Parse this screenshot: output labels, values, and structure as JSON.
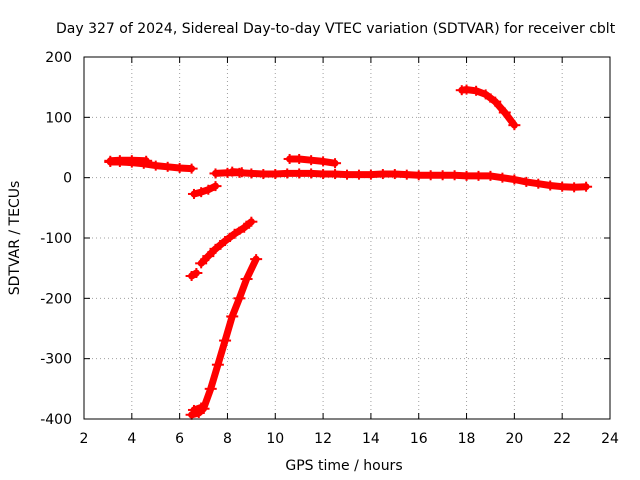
{
  "chart_data": {
    "type": "scatter",
    "title": "Day 327 of 2024, Sidereal Day-to-day VTEC variation (SDTVAR) for receiver cblt",
    "xlabel": "GPS time / hours",
    "ylabel": "SDTVAR / TECUs",
    "xlim": [
      2,
      24
    ],
    "ylim": [
      -400,
      200
    ],
    "xticks": [
      "2",
      "4",
      "6",
      "8",
      "10",
      "12",
      "14",
      "16",
      "18",
      "20",
      "22",
      "24"
    ],
    "yticks": [
      "200",
      "100",
      "0",
      "-100",
      "-200",
      "-300",
      "-400"
    ],
    "grid": true,
    "legend": "none",
    "color": "#ff0000",
    "series": [
      {
        "points": [
          [
            3.1,
            26
          ],
          [
            3.5,
            26
          ],
          [
            4.0,
            25
          ],
          [
            4.5,
            23
          ],
          [
            5.0,
            20
          ],
          [
            5.5,
            18
          ],
          [
            6.0,
            16
          ],
          [
            6.5,
            15
          ]
        ]
      },
      {
        "points": [
          [
            3.1,
            28
          ],
          [
            3.5,
            29
          ],
          [
            4.0,
            29
          ],
          [
            4.6,
            28
          ]
        ]
      },
      {
        "points": [
          [
            6.6,
            -27
          ],
          [
            6.9,
            -24
          ],
          [
            7.2,
            -20
          ],
          [
            7.5,
            -14
          ]
        ]
      },
      {
        "points": [
          [
            7.5,
            7
          ],
          [
            8.0,
            8
          ],
          [
            8.5,
            8
          ],
          [
            9.0,
            7
          ],
          [
            9.5,
            6
          ],
          [
            10.0,
            6
          ],
          [
            10.5,
            7
          ],
          [
            11.0,
            7
          ],
          [
            11.5,
            7
          ],
          [
            12.0,
            6
          ],
          [
            12.5,
            6
          ],
          [
            13.0,
            5
          ],
          [
            13.5,
            5
          ],
          [
            14.0,
            5
          ],
          [
            14.5,
            6
          ],
          [
            15.0,
            6
          ],
          [
            15.5,
            5
          ],
          [
            16.0,
            4
          ],
          [
            16.5,
            4
          ],
          [
            17.0,
            4
          ],
          [
            17.5,
            4
          ],
          [
            18.0,
            3
          ],
          [
            18.5,
            3
          ],
          [
            19.0,
            3
          ],
          [
            19.5,
            0
          ],
          [
            20.0,
            -3
          ],
          [
            20.5,
            -7
          ],
          [
            21.0,
            -10
          ],
          [
            21.5,
            -13
          ],
          [
            22.0,
            -15
          ],
          [
            22.5,
            -16
          ],
          [
            23.0,
            -15
          ]
        ]
      },
      {
        "points": [
          [
            8.2,
            10
          ],
          [
            8.6,
            9
          ]
        ]
      },
      {
        "points": [
          [
            10.6,
            31
          ],
          [
            11.0,
            31
          ],
          [
            11.5,
            29
          ],
          [
            12.0,
            27
          ],
          [
            12.5,
            24
          ]
        ]
      },
      {
        "points": [
          [
            17.8,
            145
          ],
          [
            18.0,
            146
          ],
          [
            18.4,
            144
          ],
          [
            18.8,
            138
          ],
          [
            19.2,
            126
          ],
          [
            19.6,
            108
          ],
          [
            20.0,
            87
          ]
        ]
      },
      {
        "points": [
          [
            6.5,
            -163
          ],
          [
            6.7,
            -158
          ]
        ]
      },
      {
        "points": [
          [
            6.9,
            -142
          ],
          [
            7.2,
            -130
          ],
          [
            7.5,
            -118
          ],
          [
            7.9,
            -105
          ],
          [
            8.3,
            -93
          ],
          [
            8.7,
            -83
          ],
          [
            9.0,
            -73
          ]
        ]
      },
      {
        "points": [
          [
            6.5,
            -393
          ],
          [
            6.8,
            -390
          ],
          [
            7.0,
            -383
          ],
          [
            7.3,
            -350
          ],
          [
            7.6,
            -310
          ],
          [
            7.9,
            -270
          ],
          [
            8.2,
            -230
          ],
          [
            8.5,
            -200
          ],
          [
            8.8,
            -168
          ],
          [
            9.2,
            -135
          ]
        ]
      },
      {
        "points": [
          [
            6.6,
            -385
          ],
          [
            6.9,
            -381
          ]
        ]
      }
    ]
  }
}
